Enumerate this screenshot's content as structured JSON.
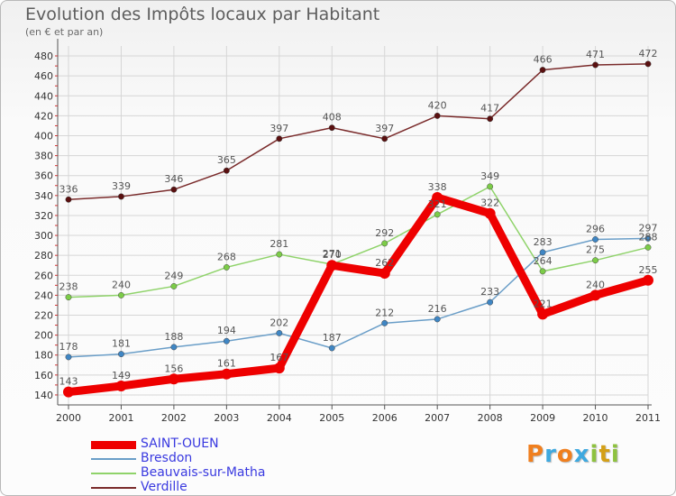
{
  "header": {
    "title": "Evolution des Impôts locaux par Habitant",
    "subtitle": "(en € et par an)"
  },
  "brand": {
    "text": "Proxiti",
    "colors": [
      "#f07f1e",
      "#3fa9df",
      "#f07f1e",
      "#3fa9df",
      "#8ec23f",
      "#d4a017",
      "#8ec23f"
    ]
  },
  "chart_data": {
    "type": "line",
    "x": [
      "2000",
      "2001",
      "2002",
      "2003",
      "2004",
      "2005",
      "2006",
      "2007",
      "2008",
      "2009",
      "2010",
      "2011"
    ],
    "ylim": [
      130,
      490
    ],
    "yticks": [
      140,
      160,
      180,
      200,
      220,
      240,
      260,
      280,
      300,
      320,
      340,
      360,
      380,
      400,
      420,
      440,
      460,
      480
    ],
    "grid": true,
    "legend_position": "bottom-left",
    "series": [
      {
        "name": "Verdille",
        "color": "#7a2b2b",
        "marker": "#5a1010",
        "width": 1.5,
        "values": [
          336,
          339,
          346,
          365,
          397,
          408,
          397,
          420,
          417,
          466,
          471,
          472
        ]
      },
      {
        "name": "Beauvais-sur-Matha",
        "color": "#8fd36a",
        "marker": "#7ccc48",
        "width": 1.5,
        "values": [
          238,
          240,
          249,
          268,
          281,
          271,
          292,
          321,
          349,
          264,
          275,
          288
        ]
      },
      {
        "name": "Bresdon",
        "color": "#6a9ec8",
        "marker": "#3f86c4",
        "width": 1.5,
        "values": [
          178,
          181,
          188,
          194,
          202,
          187,
          212,
          216,
          233,
          283,
          296,
          297
        ]
      },
      {
        "name": "SAINT-OUEN",
        "color": "#ee0000",
        "marker": "#ee0000",
        "width": 9,
        "values": [
          143,
          149,
          156,
          161,
          167,
          270,
          262,
          338,
          322,
          221,
          240,
          255
        ]
      }
    ],
    "data_labels": [
      {
        "series": "Verdille",
        "labels": [
          "336",
          "339",
          "346",
          "365",
          "397",
          "408",
          "397",
          "420",
          "417",
          "466",
          "471",
          "472"
        ]
      },
      {
        "series": "Beauvais-sur-Matha",
        "labels": [
          "238",
          "240",
          "249",
          "268",
          "281",
          "271",
          "292",
          "321",
          "349",
          "264",
          "275",
          "288"
        ]
      },
      {
        "series": "Bresdon",
        "labels": [
          "178",
          "181",
          "188",
          "194",
          "202",
          "187",
          "212",
          "216",
          "233",
          "283",
          "296",
          "297"
        ]
      },
      {
        "series": "SAINT-OUEN",
        "labels": [
          "143",
          "149",
          "156",
          "161",
          "167",
          "270",
          "262",
          "338",
          "322",
          "221",
          "240",
          "255"
        ]
      }
    ],
    "legend": [
      {
        "label": "SAINT-OUEN",
        "color": "#ee0000",
        "thick": true
      },
      {
        "label": "Bresdon",
        "color": "#6a9ec8",
        "thick": false
      },
      {
        "label": "Beauvais-sur-Matha",
        "color": "#8fd36a",
        "thick": false
      },
      {
        "label": "Verdille",
        "color": "#7a2b2b",
        "thick": false
      }
    ]
  }
}
